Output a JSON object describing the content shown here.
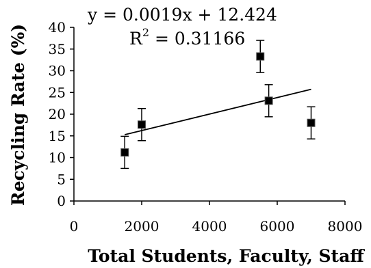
{
  "chart_data": {
    "type": "scatter",
    "title": "",
    "xlabel": "Total Students, Faculty, Staff",
    "ylabel": "Recycling Rate (%)",
    "xlim": [
      0,
      8000
    ],
    "ylim": [
      0,
      40
    ],
    "x_ticks": [
      0,
      2000,
      4000,
      6000,
      8000
    ],
    "y_ticks": [
      0,
      5,
      10,
      15,
      20,
      25,
      30,
      35,
      40
    ],
    "grid": false,
    "legend": "none",
    "marker_color": "#000000",
    "points": [
      {
        "x": 1500,
        "y": 11.2,
        "err": 3.7
      },
      {
        "x": 2000,
        "y": 17.6,
        "err": 3.7
      },
      {
        "x": 5500,
        "y": 33.3,
        "err": 3.7
      },
      {
        "x": 5750,
        "y": 23.1,
        "err": 3.7
      },
      {
        "x": 7000,
        "y": 18.0,
        "err": 3.7
      }
    ],
    "trendline": {
      "slope": 0.0019,
      "intercept": 12.424,
      "x_start": 1500,
      "x_end": 7000,
      "equation": "y = 0.0019x + 12.424",
      "r2_label": "R",
      "r2_sup": "2",
      "r2_value": " = 0.31166"
    }
  }
}
